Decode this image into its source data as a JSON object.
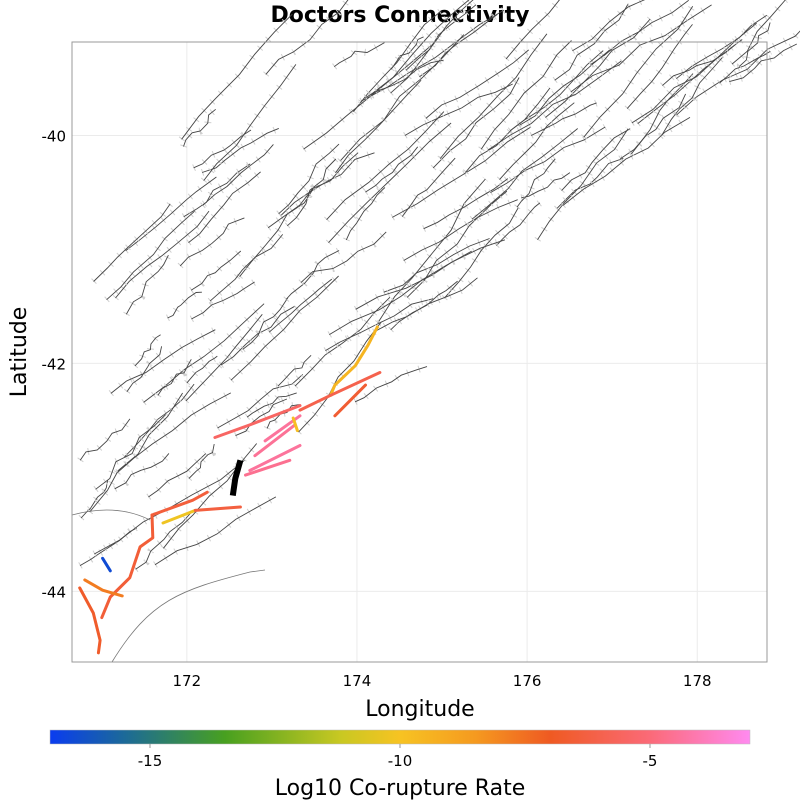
{
  "chart_data": {
    "type": "map",
    "title": "Doctors Connectivity",
    "xlabel": "Longitude",
    "ylabel": "Latitude",
    "xlim": [
      170.65,
      178.82
    ],
    "ylim": [
      -44.62,
      -39.18
    ],
    "xticks": [
      172,
      174,
      176,
      178
    ],
    "yticks": [
      -40,
      -42,
      -44
    ],
    "xtick_labels": [
      "172",
      "174",
      "176",
      "178"
    ],
    "ytick_labels": [
      "-40",
      "-42",
      "-44"
    ],
    "grid": true,
    "colorbar": {
      "label": "Log10 Co-rupture Rate",
      "range": [
        -17,
        -3
      ],
      "ticks": [
        -15,
        -10,
        -5
      ],
      "tick_labels": [
        "-15",
        "-10",
        "-5"
      ],
      "placement": "bottom",
      "stops": [
        {
          "v": -17,
          "c": "#0a3cf0"
        },
        {
          "v": -15.5,
          "c": "#1c6a98"
        },
        {
          "v": -13.5,
          "c": "#48a020"
        },
        {
          "v": -11.2,
          "c": "#c8c822"
        },
        {
          "v": -10,
          "c": "#f7c322"
        },
        {
          "v": -8.5,
          "c": "#f59a20"
        },
        {
          "v": -7,
          "c": "#ef5a22"
        },
        {
          "v": -5,
          "c": "#fb6a78"
        },
        {
          "v": -3,
          "c": "#ff8af0"
        }
      ]
    },
    "target_fault": {
      "name": "Doctors",
      "color": "#000000",
      "coords": [
        [
          172.63,
          -42.85
        ],
        [
          172.57,
          -43.01
        ],
        [
          172.54,
          -43.16
        ]
      ]
    },
    "ruptures": [
      {
        "rate": -9.5,
        "coords": [
          [
            174.24,
            -41.68
          ],
          [
            174.13,
            -41.84
          ],
          [
            173.98,
            -42.02
          ],
          [
            173.74,
            -42.19
          ],
          [
            173.69,
            -42.28
          ]
        ]
      },
      {
        "rate": -6.0,
        "coords": [
          [
            174.27,
            -42.08
          ],
          [
            173.69,
            -42.28
          ],
          [
            173.33,
            -42.41
          ]
        ]
      },
      {
        "rate": -6.6,
        "coords": [
          [
            174.1,
            -42.19
          ],
          [
            173.74,
            -42.46
          ]
        ]
      },
      {
        "rate": -5.5,
        "coords": [
          [
            173.33,
            -42.37
          ],
          [
            172.74,
            -42.54
          ],
          [
            172.33,
            -42.65
          ]
        ]
      },
      {
        "rate": -4.4,
        "coords": [
          [
            172.92,
            -42.68
          ],
          [
            173.33,
            -42.46
          ]
        ]
      },
      {
        "rate": -4.5,
        "coords": [
          [
            172.8,
            -42.81
          ],
          [
            173.27,
            -42.54
          ]
        ]
      },
      {
        "rate": -4.4,
        "coords": [
          [
            172.74,
            -42.94
          ],
          [
            173.33,
            -42.72
          ]
        ]
      },
      {
        "rate": -4.6,
        "coords": [
          [
            172.69,
            -42.98
          ],
          [
            173.21,
            -42.85
          ]
        ]
      },
      {
        "rate": -9.8,
        "coords": [
          [
            173.25,
            -42.48
          ],
          [
            173.3,
            -42.59
          ]
        ]
      },
      {
        "rate": -10.2,
        "coords": [
          [
            171.72,
            -43.4
          ],
          [
            172.1,
            -43.29
          ]
        ]
      },
      {
        "rate": -6.3,
        "coords": [
          [
            172.1,
            -43.29
          ],
          [
            172.63,
            -43.26
          ]
        ]
      },
      {
        "rate": -6.4,
        "coords": [
          [
            171.59,
            -43.33
          ],
          [
            172.07,
            -43.2
          ],
          [
            172.24,
            -43.13
          ]
        ]
      },
      {
        "rate": -6.5,
        "coords": [
          [
            171.59,
            -43.33
          ],
          [
            171.6,
            -43.53
          ],
          [
            171.45,
            -43.61
          ],
          [
            171.33,
            -43.88
          ],
          [
            171.1,
            -44.05
          ],
          [
            171.0,
            -44.23
          ]
        ]
      },
      {
        "rate": -7.8,
        "coords": [
          [
            170.8,
            -43.9
          ],
          [
            171.01,
            -43.99
          ],
          [
            171.24,
            -44.04
          ]
        ]
      },
      {
        "rate": -6.8,
        "coords": [
          [
            170.74,
            -43.97
          ],
          [
            170.9,
            -44.19
          ],
          [
            170.98,
            -44.43
          ],
          [
            170.96,
            -44.54
          ]
        ]
      },
      {
        "rate": -16.5,
        "coords": [
          [
            171.01,
            -43.71
          ],
          [
            171.1,
            -43.82
          ]
        ]
      }
    ]
  }
}
